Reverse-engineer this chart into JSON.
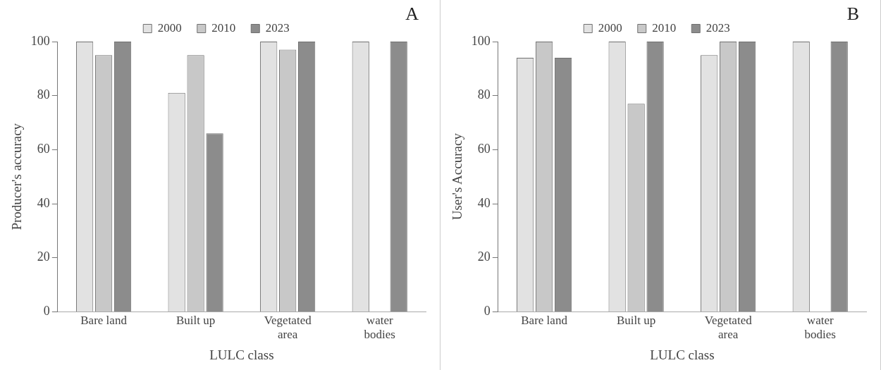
{
  "chart_data": [
    {
      "type": "bar",
      "annotations": [
        "A"
      ],
      "xlabel": "LULC class",
      "ylabel": "Producer's accuracy",
      "categories": [
        "Bare land",
        "Built up",
        "Vegetated area",
        "water bodies"
      ],
      "ylim": [
        0,
        100
      ],
      "yticks": [
        0,
        20,
        40,
        60,
        80,
        100
      ],
      "grid": false,
      "legend": "top",
      "series": [
        {
          "name": "2000",
          "color": "#e2e2e2",
          "values": [
            100,
            81,
            100,
            100
          ]
        },
        {
          "name": "2010",
          "color": "#c8c8c8",
          "values": [
            95,
            95,
            97,
            null
          ]
        },
        {
          "name": "2023",
          "color": "#8c8c8c",
          "values": [
            100,
            66,
            100,
            100
          ]
        }
      ]
    },
    {
      "type": "bar",
      "annotations": [
        "B"
      ],
      "xlabel": "LULC class",
      "ylabel": "User's Accuracy",
      "categories": [
        "Bare land",
        "Built up",
        "Vegetated area",
        "water bodies"
      ],
      "ylim": [
        0,
        100
      ],
      "yticks": [
        0,
        20,
        40,
        60,
        80,
        100
      ],
      "grid": false,
      "legend": "top",
      "series": [
        {
          "name": "2000",
          "color": "#e2e2e2",
          "values": [
            94,
            100,
            95,
            100
          ]
        },
        {
          "name": "2010",
          "color": "#c8c8c8",
          "values": [
            100,
            77,
            100,
            null
          ]
        },
        {
          "name": "2023",
          "color": "#8c8c8c",
          "values": [
            94,
            100,
            100,
            100
          ]
        }
      ]
    }
  ]
}
